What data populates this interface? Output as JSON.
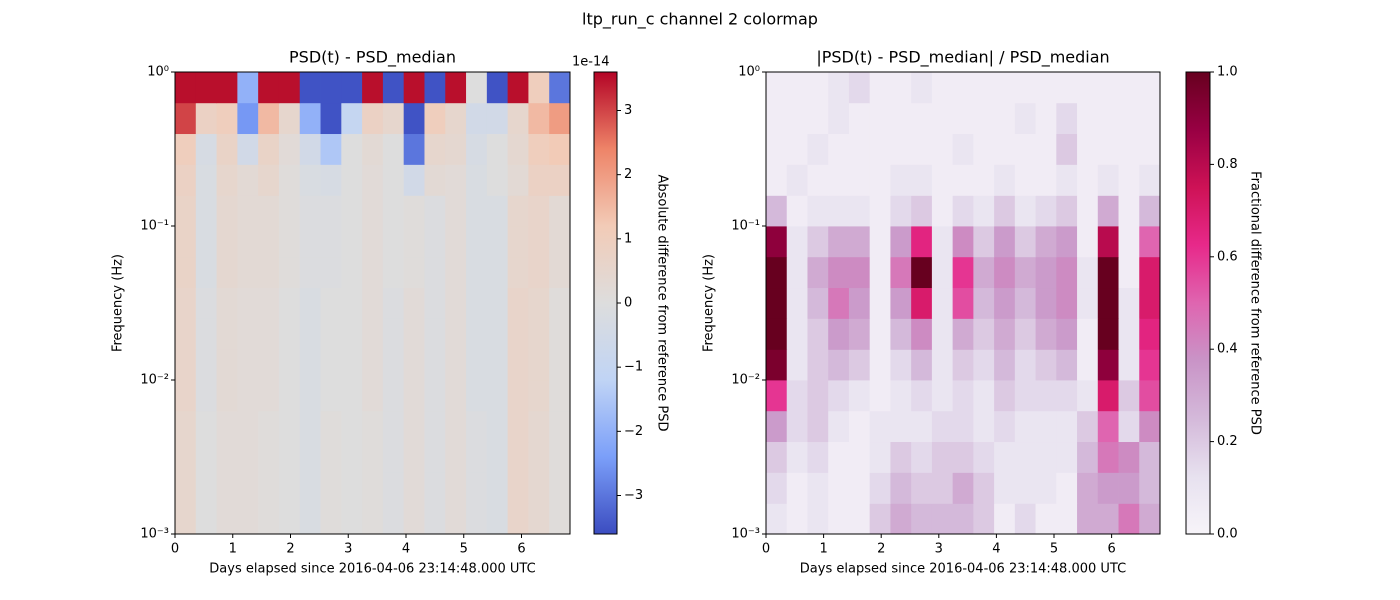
{
  "title": "ltp_run_c channel 2 colormap",
  "chart_data": [
    {
      "type": "heatmap",
      "title": "PSD(t) - PSD_median",
      "xlabel": "Days elapsed since 2016-04-06 23:14:48.000 UTC",
      "ylabel": "Frequency (Hz)",
      "colorbar_label": "Absolute difference from reference PSD",
      "colorbar_offset": "1e-14",
      "x_edges": [
        0,
        0.36,
        0.72,
        1.08,
        1.44,
        1.8,
        2.16,
        2.52,
        2.88,
        3.24,
        3.6,
        3.96,
        4.32,
        4.68,
        5.04,
        5.4,
        5.76,
        6.12,
        6.48,
        6.84
      ],
      "y_edges": [
        0.001,
        0.00158,
        0.00251,
        0.00398,
        0.00631,
        0.01,
        0.0158,
        0.0251,
        0.0398,
        0.0631,
        0.1,
        0.158,
        0.251,
        0.398,
        0.631,
        1
      ],
      "values": [
        [
          0.5,
          0,
          0.2,
          0.2,
          0.1,
          0,
          -0.2,
          0.1,
          0,
          0.1,
          -0.1,
          0.2,
          -0.1,
          0.2,
          -0.1,
          -0.2,
          0.6,
          0.4,
          0.1
        ],
        [
          0.5,
          0,
          0.2,
          0.2,
          0.1,
          0,
          -0.2,
          0.1,
          0,
          0.1,
          -0.1,
          0.2,
          -0.1,
          0.2,
          -0.1,
          -0.2,
          0.6,
          0.4,
          0.1
        ],
        [
          0.5,
          0,
          0.2,
          0.2,
          0.1,
          0,
          -0.2,
          0.1,
          0,
          0.1,
          -0.1,
          0.2,
          -0.1,
          0.2,
          -0.1,
          -0.2,
          0.6,
          0.4,
          0.1
        ],
        [
          0.5,
          0,
          0.2,
          0.2,
          0.1,
          0,
          -0.2,
          0.1,
          0,
          0.1,
          -0.1,
          0.2,
          -0.1,
          0.2,
          -0.1,
          -0.2,
          0.6,
          0.4,
          0.1
        ],
        [
          0.6,
          -0.1,
          0.3,
          0.2,
          0.2,
          0,
          -0.2,
          0,
          0,
          0.2,
          -0.1,
          0.2,
          -0.1,
          0.2,
          -0.2,
          -0.2,
          0.6,
          0.5,
          0.1
        ],
        [
          0.6,
          -0.1,
          0.3,
          0.2,
          0.2,
          0,
          -0.2,
          0,
          0,
          0.2,
          -0.1,
          0.2,
          -0.1,
          0.2,
          -0.2,
          -0.2,
          0.6,
          0.5,
          0.1
        ],
        [
          0.6,
          -0.1,
          0.3,
          0.2,
          0.2,
          0,
          -0.2,
          0,
          0,
          0.2,
          -0.1,
          0.2,
          -0.1,
          0.2,
          -0.2,
          -0.2,
          0.6,
          0.5,
          0.1
        ],
        [
          0.6,
          -0.1,
          0.3,
          0.2,
          0.2,
          0,
          -0.2,
          0,
          0,
          0.2,
          -0.1,
          0.2,
          -0.1,
          0.2,
          -0.2,
          -0.2,
          0.6,
          0.5,
          0.1
        ],
        [
          0.7,
          -0.2,
          0.4,
          0.3,
          0.3,
          0.1,
          -0.1,
          -0.1,
          0,
          0.2,
          0,
          0.1,
          -0.1,
          0.2,
          -0.2,
          -0.2,
          0.5,
          0.6,
          0.3
        ],
        [
          0.7,
          -0.2,
          0.4,
          0.3,
          0.3,
          0.1,
          -0.1,
          -0.1,
          0,
          0.2,
          0,
          0.1,
          -0.1,
          0.2,
          -0.2,
          -0.2,
          0.5,
          0.6,
          0.3
        ],
        [
          0.7,
          -0.2,
          0.4,
          0.3,
          0.3,
          0.1,
          -0.1,
          -0.1,
          0,
          0.2,
          0,
          0.1,
          -0.1,
          0.2,
          -0.2,
          -0.2,
          0.5,
          0.6,
          0.3
        ],
        [
          0.8,
          -0.2,
          0.5,
          0.3,
          0.5,
          0.1,
          -0.2,
          -0.3,
          0,
          0.2,
          0,
          -0.5,
          0.3,
          0.2,
          -0.2,
          0,
          0.3,
          0.8,
          0.8
        ],
        [
          1,
          -0.3,
          0.7,
          -0.5,
          0.7,
          0.2,
          -0.5,
          -1.5,
          0,
          0.3,
          0,
          -3,
          0.5,
          0.4,
          -0.3,
          0,
          0.4,
          1,
          1.2
        ],
        [
          3,
          0.8,
          1,
          -2.5,
          1.5,
          0.5,
          -2,
          -3.5,
          -1,
          0.8,
          0.5,
          -3.5,
          1,
          0.5,
          -0.5,
          -0.5,
          0.5,
          1.5,
          2
        ],
        [
          3.5,
          3.5,
          3.5,
          -2,
          3.5,
          3.5,
          -3.5,
          -3.5,
          -3.5,
          3.5,
          -3.5,
          3.5,
          -3.5,
          3.5,
          0,
          -3.5,
          3.5,
          1,
          -3
        ]
      ],
      "xlim": [
        0,
        6.84
      ],
      "xticks": [
        0,
        1,
        2,
        3,
        4,
        5,
        6
      ],
      "ylim": [
        0.001,
        1
      ],
      "log_y": true,
      "yticks": [
        {
          "value": 0.001,
          "label": "10⁻³"
        },
        {
          "value": 0.01,
          "label": "10⁻²"
        },
        {
          "value": 0.1,
          "label": "10⁻¹"
        },
        {
          "value": 1,
          "label": "10⁰"
        }
      ],
      "clim": [
        -3.6,
        3.6
      ],
      "cticks": [
        {
          "value": -3,
          "label": "−3"
        },
        {
          "value": -2,
          "label": "−2"
        },
        {
          "value": -1,
          "label": "−1"
        },
        0,
        1,
        2,
        3
      ],
      "colormap": [
        "#3b4cc0",
        "#7b9ff9",
        "#c0d4f5",
        "#dddddd",
        "#f2cbb7",
        "#ee8468",
        "#b40426"
      ]
    },
    {
      "type": "heatmap",
      "title": "|PSD(t) - PSD_median| / PSD_median",
      "xlabel": "Days elapsed since 2016-04-06 23:14:48.000 UTC",
      "ylabel": "Frequency (Hz)",
      "colorbar_label": "Fractional difference from reference PSD",
      "x_edges": [
        0,
        0.36,
        0.72,
        1.08,
        1.44,
        1.8,
        2.16,
        2.52,
        2.88,
        3.24,
        3.6,
        3.96,
        4.32,
        4.68,
        5.04,
        5.4,
        5.76,
        6.12,
        6.48,
        6.84
      ],
      "y_edges": [
        0.001,
        0.00158,
        0.00251,
        0.00398,
        0.00631,
        0.01,
        0.0158,
        0.0251,
        0.0398,
        0.0631,
        0.1,
        0.158,
        0.251,
        0.398,
        0.631,
        1
      ],
      "values": [
        [
          0.1,
          0.05,
          0.1,
          0.05,
          0.05,
          0.2,
          0.3,
          0.25,
          0.25,
          0.25,
          0.2,
          0.05,
          0.15,
          0.05,
          0.05,
          0.3,
          0.3,
          0.45,
          0.3
        ],
        [
          0.15,
          0.05,
          0.1,
          0.05,
          0.05,
          0.15,
          0.25,
          0.2,
          0.2,
          0.3,
          0.2,
          0.1,
          0.1,
          0.1,
          0.05,
          0.3,
          0.35,
          0.35,
          0.25
        ],
        [
          0.2,
          0.1,
          0.15,
          0.05,
          0.05,
          0.1,
          0.2,
          0.15,
          0.2,
          0.2,
          0.15,
          0.1,
          0.1,
          0.1,
          0.1,
          0.25,
          0.45,
          0.4,
          0.25
        ],
        [
          0.35,
          0.15,
          0.2,
          0.1,
          0.05,
          0.1,
          0.1,
          0.1,
          0.15,
          0.15,
          0.1,
          0.15,
          0.1,
          0.1,
          0.1,
          0.2,
          0.5,
          0.15,
          0.4
        ],
        [
          0.6,
          0.15,
          0.2,
          0.15,
          0.1,
          0.05,
          0.1,
          0.15,
          0.1,
          0.15,
          0.1,
          0.2,
          0.15,
          0.15,
          0.15,
          0.1,
          0.7,
          0.2,
          0.55
        ],
        [
          0.95,
          0.1,
          0.2,
          0.25,
          0.2,
          0.05,
          0.15,
          0.25,
          0.1,
          0.2,
          0.15,
          0.25,
          0.15,
          0.2,
          0.25,
          0.05,
          0.9,
          0.1,
          0.6
        ],
        [
          1,
          0.1,
          0.2,
          0.35,
          0.3,
          0.05,
          0.25,
          0.4,
          0.1,
          0.3,
          0.2,
          0.3,
          0.2,
          0.3,
          0.35,
          0.05,
          1,
          0.1,
          0.65
        ],
        [
          1,
          0.1,
          0.25,
          0.45,
          0.35,
          0.05,
          0.35,
          0.7,
          0.1,
          0.55,
          0.25,
          0.35,
          0.25,
          0.35,
          0.4,
          0.1,
          1,
          0.1,
          0.7
        ],
        [
          1,
          0.1,
          0.3,
          0.4,
          0.4,
          0.05,
          0.45,
          1,
          0.1,
          0.6,
          0.3,
          0.4,
          0.3,
          0.35,
          0.4,
          0.1,
          1,
          0.05,
          0.7
        ],
        [
          0.9,
          0.1,
          0.2,
          0.3,
          0.3,
          0.05,
          0.35,
          0.65,
          0.1,
          0.4,
          0.2,
          0.35,
          0.2,
          0.3,
          0.35,
          0.05,
          0.8,
          0.05,
          0.5
        ],
        [
          0.25,
          0.05,
          0.1,
          0.1,
          0.1,
          0.05,
          0.15,
          0.2,
          0.05,
          0.15,
          0.1,
          0.2,
          0.1,
          0.15,
          0.2,
          0.05,
          0.3,
          0.05,
          0.25
        ],
        [
          0.05,
          0.1,
          0.05,
          0.05,
          0.05,
          0.05,
          0.1,
          0.1,
          0.05,
          0.05,
          0.05,
          0.1,
          0.05,
          0.05,
          0.1,
          0.05,
          0.1,
          0.05,
          0.1
        ],
        [
          0.05,
          0.05,
          0.1,
          0.05,
          0.05,
          0.05,
          0.05,
          0.05,
          0.05,
          0.1,
          0.05,
          0.05,
          0.05,
          0.05,
          0.2,
          0.05,
          0.05,
          0.05,
          0.05
        ],
        [
          0.05,
          0.05,
          0.05,
          0.1,
          0.05,
          0.05,
          0.05,
          0.05,
          0.05,
          0.05,
          0.05,
          0.05,
          0.1,
          0.05,
          0.15,
          0.05,
          0.05,
          0.05,
          0.05
        ],
        [
          0.05,
          0.05,
          0.05,
          0.1,
          0.15,
          0.05,
          0.05,
          0.1,
          0.05,
          0.05,
          0.05,
          0.05,
          0.05,
          0.05,
          0.05,
          0.05,
          0.05,
          0.05,
          0.05
        ]
      ],
      "xlim": [
        0,
        6.84
      ],
      "xticks": [
        0,
        1,
        2,
        3,
        4,
        5,
        6
      ],
      "ylim": [
        0.001,
        1
      ],
      "log_y": true,
      "yticks": [
        {
          "value": 0.001,
          "label": "10⁻³"
        },
        {
          "value": 0.01,
          "label": "10⁻²"
        },
        {
          "value": 0.1,
          "label": "10⁻¹"
        },
        {
          "value": 1,
          "label": "10⁰"
        }
      ],
      "clim": [
        0,
        1
      ],
      "cticks": [
        {
          "value": 0,
          "label": "0.0"
        },
        {
          "value": 0.2,
          "label": "0.2"
        },
        {
          "value": 0.4,
          "label": "0.4"
        },
        {
          "value": 0.6,
          "label": "0.6"
        },
        {
          "value": 0.8,
          "label": "0.8"
        },
        {
          "value": 1,
          "label": "1.0"
        }
      ],
      "colormap": [
        "#f7f4f9",
        "#e7e1ef",
        "#d4b9da",
        "#c994c7",
        "#df65b0",
        "#e7298a",
        "#ce1256",
        "#980043",
        "#67001f"
      ]
    }
  ]
}
